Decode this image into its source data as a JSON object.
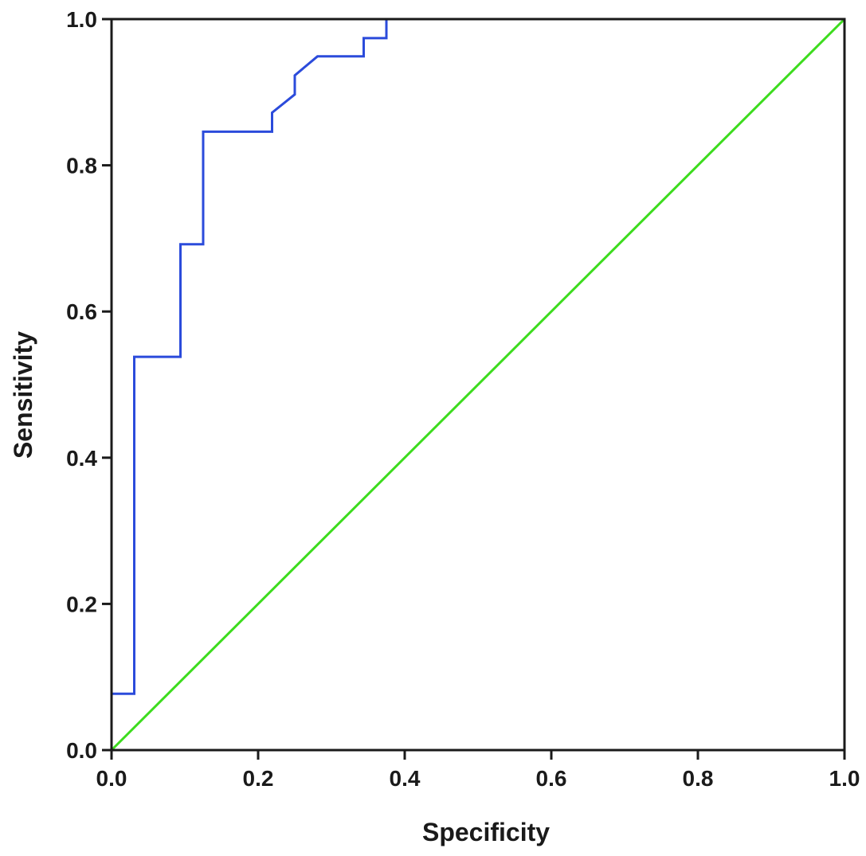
{
  "chart_data": {
    "type": "line",
    "title": "",
    "xlabel": "Specificity",
    "ylabel": "Sensitivity",
    "xlim": [
      0,
      1
    ],
    "ylim": [
      0,
      1
    ],
    "x_ticks": [
      0.0,
      0.2,
      0.4,
      0.6,
      0.8,
      1.0
    ],
    "y_ticks": [
      0.0,
      0.2,
      0.4,
      0.6,
      0.8,
      1.0
    ],
    "x_tick_labels": [
      "0.0",
      "0.2",
      "0.4",
      "0.6",
      "0.8",
      "1.0"
    ],
    "y_tick_labels": [
      "0.0",
      "0.2",
      "0.4",
      "0.6",
      "0.8",
      "1.0"
    ],
    "grid": false,
    "legend": "none",
    "series": [
      {
        "color": "#2b4bdb",
        "x": [
          0.0,
          0.0,
          0.031,
          0.031,
          0.094,
          0.094,
          0.125,
          0.125,
          0.219,
          0.219,
          0.25,
          0.25,
          0.281,
          0.344,
          0.344,
          0.375,
          0.375,
          1.0
        ],
        "y": [
          0.0,
          0.077,
          0.077,
          0.538,
          0.538,
          0.692,
          0.692,
          0.846,
          0.846,
          0.872,
          0.897,
          0.923,
          0.949,
          0.949,
          0.974,
          0.974,
          1.0,
          1.0
        ]
      },
      {
        "color": "#3ddc1e",
        "x": [
          0.0,
          1.0
        ],
        "y": [
          0.0,
          1.0
        ]
      }
    ]
  }
}
